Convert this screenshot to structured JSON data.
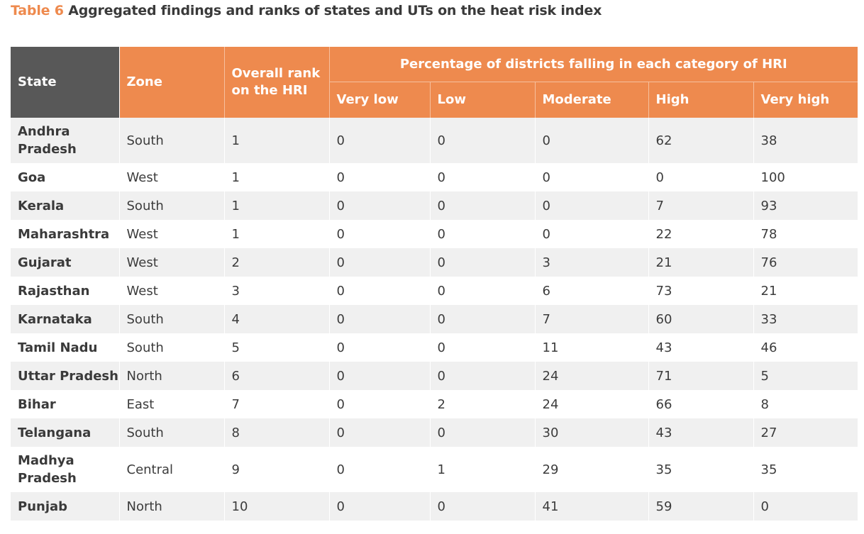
{
  "caption": {
    "label": "Table 6",
    "title": "Aggregated findings and ranks of states and UTs on the heat risk index"
  },
  "header": {
    "state": "State",
    "zone": "Zone",
    "rank": "Overall rank on the HRI",
    "percentage_group": "Percentage of districts falling in each category of HRI",
    "categories": [
      "Very low",
      "Low",
      "Moderate",
      "High",
      "Very high"
    ]
  },
  "rows": [
    {
      "state": "Andhra Pradesh",
      "zone": "South",
      "rank": "1",
      "very_low": "0",
      "low": "0",
      "moderate": "0",
      "high": "62",
      "very_high": "38"
    },
    {
      "state": "Goa",
      "zone": "West",
      "rank": "1",
      "very_low": "0",
      "low": "0",
      "moderate": "0",
      "high": "0",
      "very_high": "100"
    },
    {
      "state": "Kerala",
      "zone": "South",
      "rank": "1",
      "very_low": "0",
      "low": "0",
      "moderate": "0",
      "high": "7",
      "very_high": "93"
    },
    {
      "state": "Maharashtra",
      "zone": "West",
      "rank": "1",
      "very_low": "0",
      "low": "0",
      "moderate": "0",
      "high": "22",
      "very_high": "78"
    },
    {
      "state": "Gujarat",
      "zone": "West",
      "rank": "2",
      "very_low": "0",
      "low": "0",
      "moderate": "3",
      "high": "21",
      "very_high": "76"
    },
    {
      "state": "Rajasthan",
      "zone": "West",
      "rank": "3",
      "very_low": "0",
      "low": "0",
      "moderate": "6",
      "high": "73",
      "very_high": "21"
    },
    {
      "state": "Karnataka",
      "zone": "South",
      "rank": "4",
      "very_low": "0",
      "low": "0",
      "moderate": "7",
      "high": "60",
      "very_high": "33"
    },
    {
      "state": "Tamil Nadu",
      "zone": "South",
      "rank": "5",
      "very_low": "0",
      "low": "0",
      "moderate": "11",
      "high": "43",
      "very_high": "46"
    },
    {
      "state": "Uttar Pradesh",
      "zone": "North",
      "rank": "6",
      "very_low": "0",
      "low": "0",
      "moderate": "24",
      "high": "71",
      "very_high": "5"
    },
    {
      "state": "Bihar",
      "zone": "East",
      "rank": "7",
      "very_low": "0",
      "low": "2",
      "moderate": "24",
      "high": "66",
      "very_high": "8"
    },
    {
      "state": "Telangana",
      "zone": "South",
      "rank": "8",
      "very_low": "0",
      "low": "0",
      "moderate": "30",
      "high": "43",
      "very_high": "27"
    },
    {
      "state": "Madhya Pradesh",
      "zone": "Central",
      "rank": "9",
      "very_low": "0",
      "low": "1",
      "moderate": "29",
      "high": "35",
      "very_high": "35"
    },
    {
      "state": "Punjab",
      "zone": "North",
      "rank": "10",
      "very_low": "0",
      "low": "0",
      "moderate": "41",
      "high": "59",
      "very_high": "0"
    }
  ],
  "colors": {
    "accent_orange": "#ee8a4e",
    "state_header_gray": "#585858",
    "row_shade": "#f0f0f0"
  }
}
